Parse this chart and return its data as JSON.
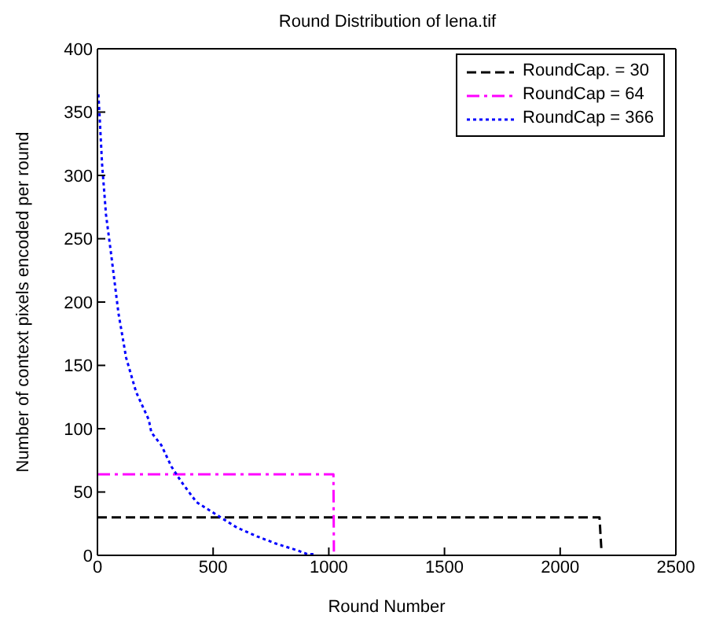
{
  "chart_data": {
    "type": "line",
    "title": "Round Distribution of lena.tif",
    "xlabel": "Round Number",
    "ylabel": "Number of context pixels encoded per round",
    "series": [
      {
        "name": "RoundCap. = 30",
        "color": "#000000",
        "line_style": "dashed",
        "x": [
          0,
          500,
          1000,
          1500,
          2170,
          2178
        ],
        "values": [
          30,
          30,
          30,
          30,
          30,
          5
        ]
      },
      {
        "name": "RoundCap = 64",
        "color": "#ff00ff",
        "line_style": "dashdot",
        "x": [
          0,
          500,
          1020,
          1022
        ],
        "values": [
          64,
          64,
          64,
          3
        ]
      },
      {
        "name": "RoundCap = 366",
        "color": "#0000ff",
        "line_style": "dotted",
        "x": [
          4,
          9,
          20,
          37,
          59,
          91,
          124,
          167,
          222,
          233,
          276,
          320,
          363,
          428,
          515,
          602,
          689,
          776,
          863,
          907,
          939
        ],
        "values": [
          364,
          348,
          309,
          269,
          238,
          191,
          156,
          129,
          107,
          97,
          87,
          70,
          58,
          42,
          32,
          22,
          15,
          9,
          4,
          1,
          1
        ]
      }
    ],
    "xlim": [
      0,
      2500
    ],
    "xticks": [
      0,
      500,
      1000,
      1500,
      2000,
      2500
    ],
    "ylim": [
      0,
      400
    ],
    "yticks": [
      0,
      50,
      100,
      150,
      200,
      250,
      300,
      350,
      400
    ],
    "legend": "top right",
    "marker": "none"
  }
}
